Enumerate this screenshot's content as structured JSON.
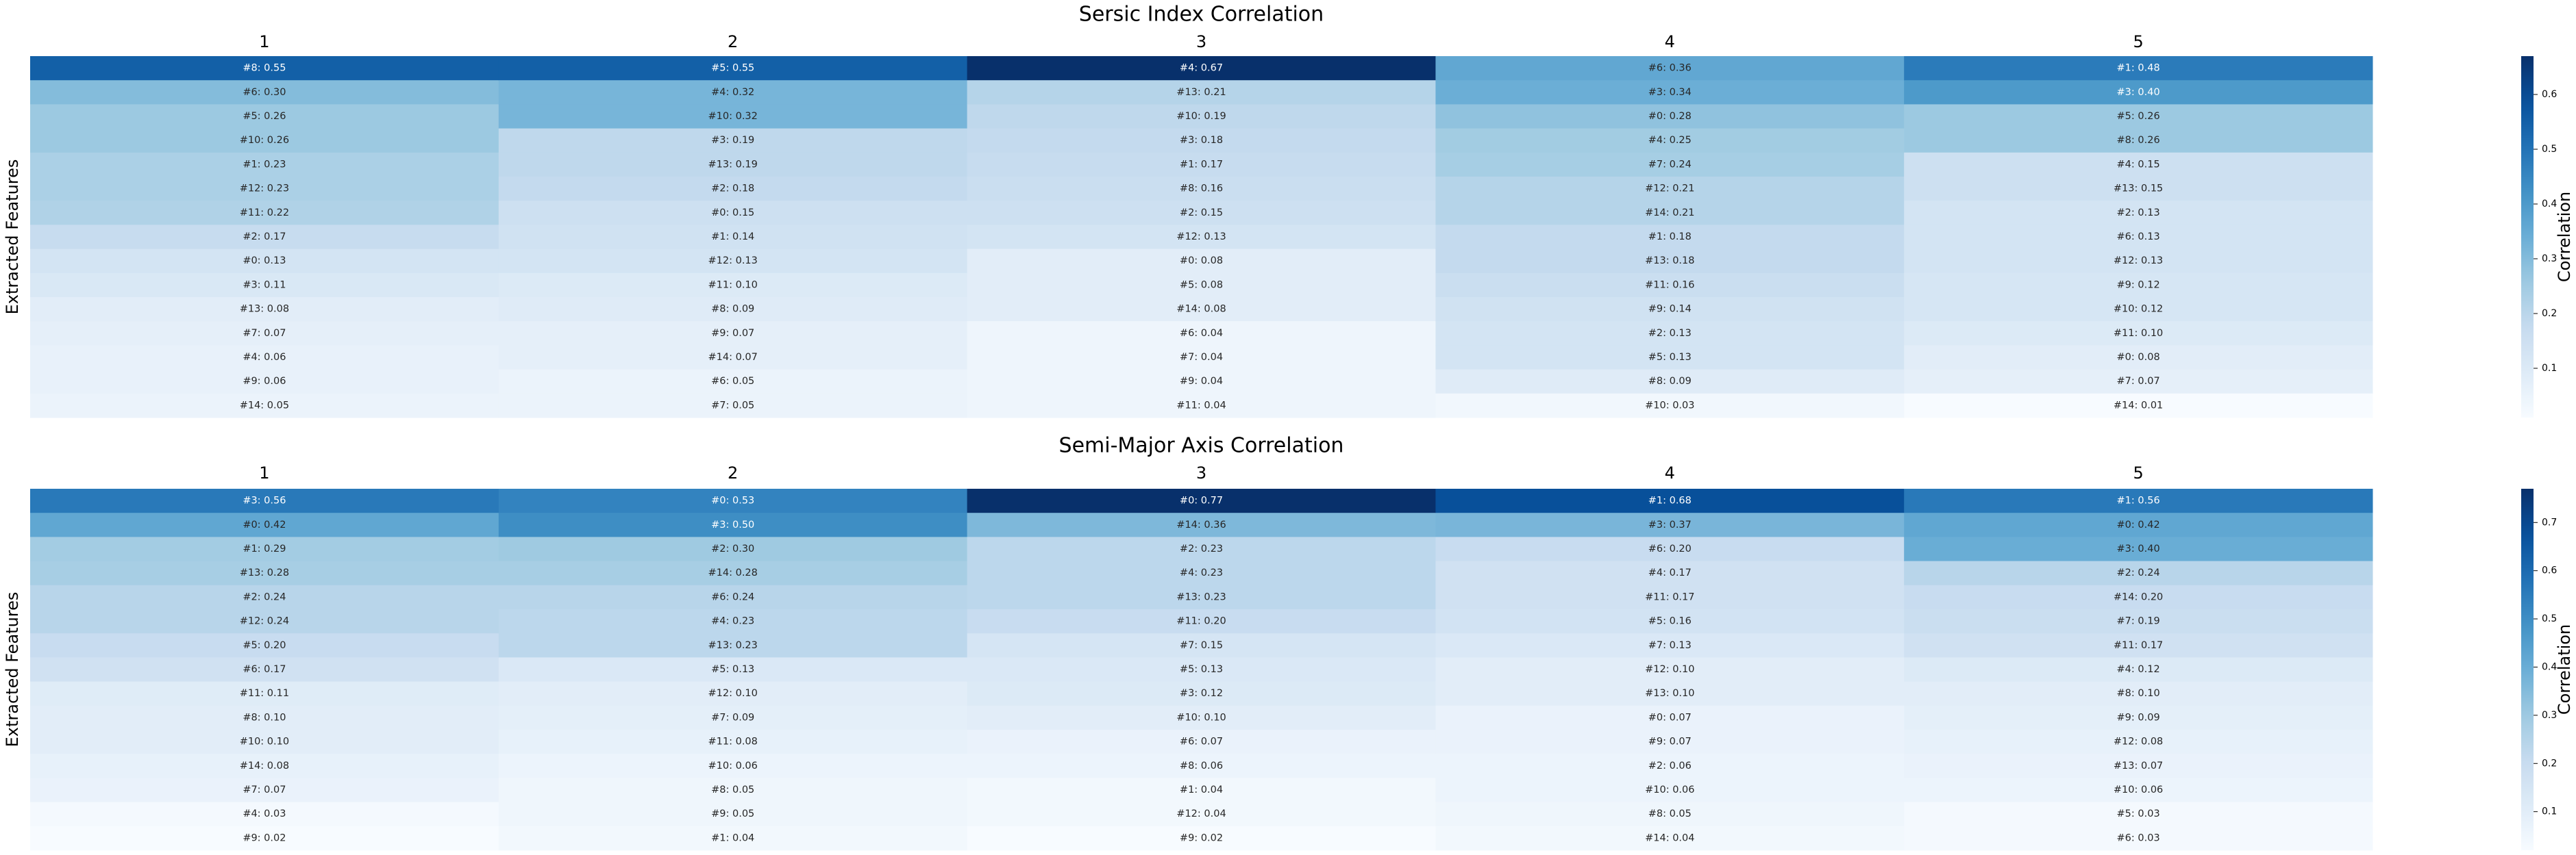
{
  "chart_data": [
    {
      "type": "heatmap",
      "title": "Sersic Index Correlation",
      "ylabel": "Extracted Features",
      "colorbar_label": "Correlation",
      "colorbar_ticks": [
        "0.1",
        "0.2",
        "0.3",
        "0.4",
        "0.5",
        "0.6"
      ],
      "vmin": 0.01,
      "vmax": 0.67,
      "colormap": "Blues",
      "columns": [
        "1",
        "2",
        "3",
        "4",
        "5"
      ],
      "cells": [
        [
          "#8: 0.55",
          "#6: 0.30",
          "#5: 0.26",
          "#10: 0.26",
          "#1: 0.23",
          "#12: 0.23",
          "#11: 0.22",
          "#2: 0.17",
          "#0: 0.13",
          "#3: 0.11",
          "#13: 0.08",
          "#7: 0.07",
          "#4: 0.06",
          "#9: 0.06",
          "#14: 0.05"
        ],
        [
          "#5: 0.55",
          "#4: 0.32",
          "#10: 0.32",
          "#3: 0.19",
          "#13: 0.19",
          "#2: 0.18",
          "#0: 0.15",
          "#1: 0.14",
          "#12: 0.13",
          "#11: 0.10",
          "#8: 0.09",
          "#9: 0.07",
          "#14: 0.07",
          "#6: 0.05",
          "#7: 0.05"
        ],
        [
          "#4: 0.67",
          "#13: 0.21",
          "#10: 0.19",
          "#3: 0.18",
          "#1: 0.17",
          "#8: 0.16",
          "#2: 0.15",
          "#12: 0.13",
          "#0: 0.08",
          "#5: 0.08",
          "#14: 0.08",
          "#6: 0.04",
          "#7: 0.04",
          "#9: 0.04",
          "#11: 0.04"
        ],
        [
          "#6: 0.36",
          "#3: 0.34",
          "#0: 0.28",
          "#4: 0.25",
          "#7: 0.24",
          "#12: 0.21",
          "#14: 0.21",
          "#1: 0.18",
          "#13: 0.18",
          "#11: 0.16",
          "#9: 0.14",
          "#2: 0.13",
          "#5: 0.13",
          "#8: 0.09",
          "#10: 0.03"
        ],
        [
          "#1: 0.48",
          "#3: 0.40",
          "#5: 0.26",
          "#8: 0.26",
          "#4: 0.15",
          "#13: 0.15",
          "#2: 0.13",
          "#6: 0.13",
          "#12: 0.13",
          "#9: 0.12",
          "#10: 0.12",
          "#11: 0.10",
          "#0: 0.08",
          "#7: 0.07",
          "#14: 0.01"
        ]
      ]
    },
    {
      "type": "heatmap",
      "title": "Semi-Major Axis Correlation",
      "ylabel": "Extracted Features",
      "colorbar_label": "Correlation",
      "colorbar_ticks": [
        "0.1",
        "0.2",
        "0.3",
        "0.4",
        "0.5",
        "0.6",
        "0.7"
      ],
      "vmin": 0.02,
      "vmax": 0.77,
      "colormap": "Blues",
      "columns": [
        "1",
        "2",
        "3",
        "4",
        "5"
      ],
      "cells": [
        [
          "#3: 0.56",
          "#0: 0.42",
          "#1: 0.29",
          "#13: 0.28",
          "#2: 0.24",
          "#12: 0.24",
          "#5: 0.20",
          "#6: 0.17",
          "#11: 0.11",
          "#8: 0.10",
          "#10: 0.10",
          "#14: 0.08",
          "#7: 0.07",
          "#4: 0.03",
          "#9: 0.02"
        ],
        [
          "#0: 0.53",
          "#3: 0.50",
          "#2: 0.30",
          "#14: 0.28",
          "#6: 0.24",
          "#4: 0.23",
          "#13: 0.23",
          "#5: 0.13",
          "#12: 0.10",
          "#7: 0.09",
          "#11: 0.08",
          "#10: 0.06",
          "#8: 0.05",
          "#9: 0.05",
          "#1: 0.04"
        ],
        [
          "#0: 0.77",
          "#14: 0.36",
          "#2: 0.23",
          "#4: 0.23",
          "#13: 0.23",
          "#11: 0.20",
          "#7: 0.15",
          "#5: 0.13",
          "#3: 0.12",
          "#10: 0.10",
          "#6: 0.07",
          "#8: 0.06",
          "#1: 0.04",
          "#12: 0.04",
          "#9: 0.02"
        ],
        [
          "#1: 0.68",
          "#3: 0.37",
          "#6: 0.20",
          "#4: 0.17",
          "#11: 0.17",
          "#5: 0.16",
          "#7: 0.13",
          "#12: 0.10",
          "#13: 0.10",
          "#0: 0.07",
          "#9: 0.07",
          "#2: 0.06",
          "#10: 0.06",
          "#8: 0.05",
          "#14: 0.04"
        ],
        [
          "#1: 0.56",
          "#0: 0.42",
          "#3: 0.40",
          "#2: 0.24",
          "#14: 0.20",
          "#7: 0.19",
          "#11: 0.17",
          "#4: 0.12",
          "#8: 0.10",
          "#9: 0.09",
          "#12: 0.08",
          "#13: 0.07",
          "#10: 0.06",
          "#5: 0.03",
          "#6: 0.03"
        ]
      ]
    }
  ]
}
